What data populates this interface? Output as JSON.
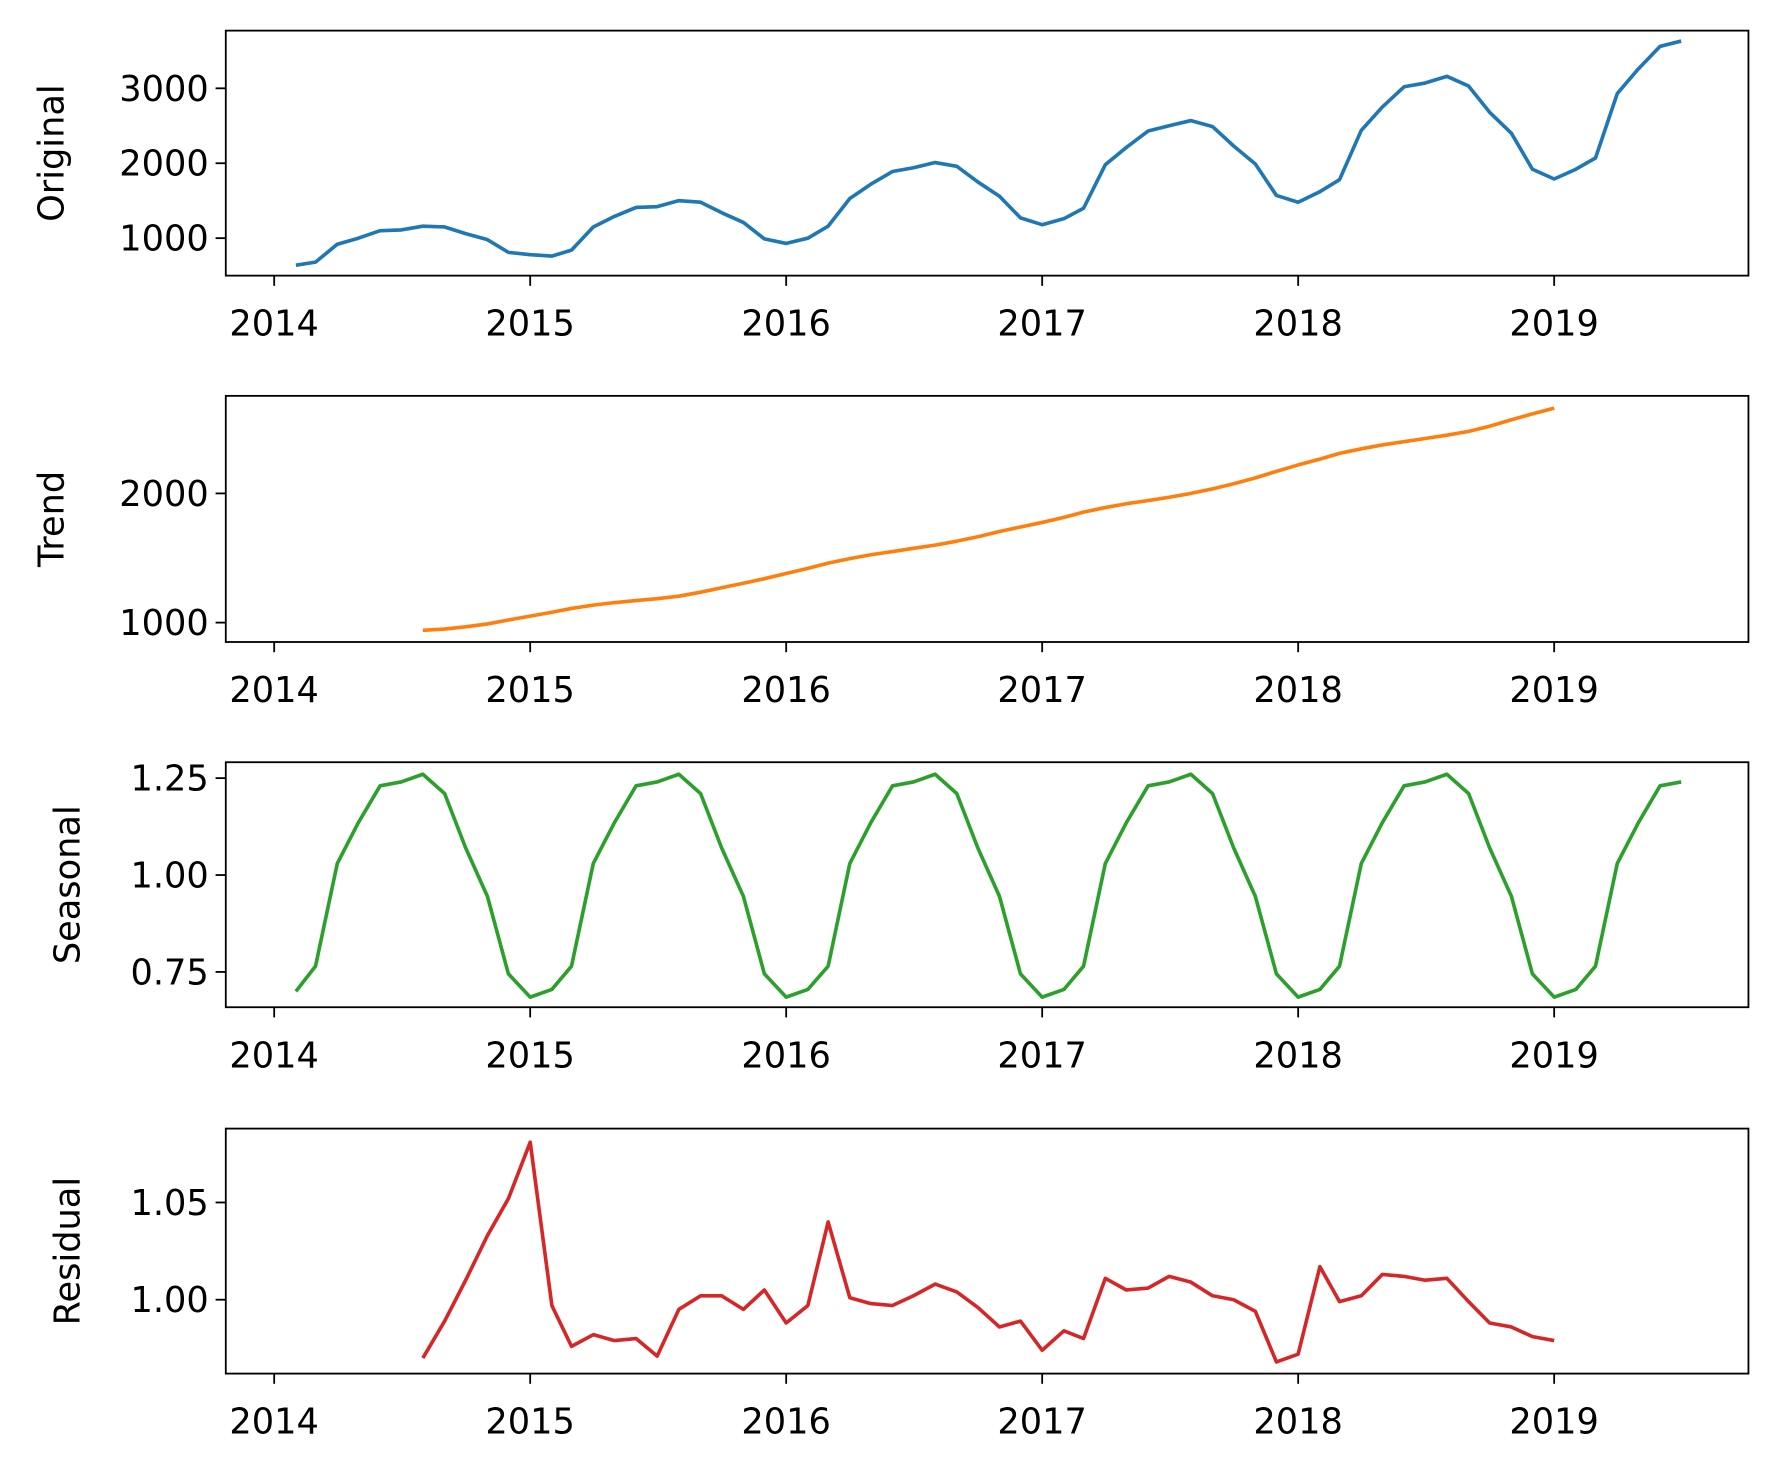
{
  "chart_data": [
    {
      "type": "line",
      "ylabel": "Original",
      "color": "#1f77b4",
      "xlim": [
        "2013-10-24",
        "2019-10-05"
      ],
      "ylim": [
        500,
        3770
      ],
      "xticks": [
        "2014",
        "2015",
        "2016",
        "2017",
        "2018",
        "2019"
      ],
      "yticks": [
        1000,
        2000,
        3000
      ],
      "ytick_labels": [
        "1000",
        "2000",
        "3000"
      ],
      "x": [
        "2014-02",
        "2014-03",
        "2014-04",
        "2014-05",
        "2014-06",
        "2014-07",
        "2014-08",
        "2014-09",
        "2014-10",
        "2014-11",
        "2014-12",
        "2015-01",
        "2015-02",
        "2015-03",
        "2015-04",
        "2015-05",
        "2015-06",
        "2015-07",
        "2015-08",
        "2015-09",
        "2015-10",
        "2015-11",
        "2015-12",
        "2016-01",
        "2016-02",
        "2016-03",
        "2016-04",
        "2016-05",
        "2016-06",
        "2016-07",
        "2016-08",
        "2016-09",
        "2016-10",
        "2016-11",
        "2016-12",
        "2017-01",
        "2017-02",
        "2017-03",
        "2017-04",
        "2017-05",
        "2017-06",
        "2017-07",
        "2017-08",
        "2017-09",
        "2017-10",
        "2017-11",
        "2017-12",
        "2018-01",
        "2018-02",
        "2018-03",
        "2018-04",
        "2018-05",
        "2018-06",
        "2018-07",
        "2018-08",
        "2018-09",
        "2018-10",
        "2018-11",
        "2018-12",
        "2019-01",
        "2019-02",
        "2019-03",
        "2019-04",
        "2019-05",
        "2019-06",
        "2019-07"
      ],
      "values": [
        640,
        680,
        920,
        1000,
        1100,
        1110,
        1160,
        1150,
        1060,
        980,
        810,
        780,
        760,
        840,
        1150,
        1290,
        1410,
        1420,
        1500,
        1480,
        1340,
        1210,
        990,
        930,
        1000,
        1160,
        1530,
        1720,
        1890,
        1940,
        2010,
        1960,
        1750,
        1560,
        1270,
        1180,
        1260,
        1400,
        1980,
        2210,
        2430,
        2500,
        2570,
        2490,
        2230,
        1990,
        1570,
        1480,
        1620,
        1780,
        2440,
        2750,
        3020,
        3070,
        3160,
        3030,
        2680,
        2400,
        1920,
        1790,
        1920,
        2070,
        2930,
        3260,
        3560,
        3630
      ]
    },
    {
      "type": "line",
      "ylabel": "Trend",
      "color": "#ff7f0e",
      "xlim": [
        "2013-10-24",
        "2019-10-05"
      ],
      "ylim": [
        850,
        2755
      ],
      "xticks": [
        "2014",
        "2015",
        "2016",
        "2017",
        "2018",
        "2019"
      ],
      "yticks": [
        1000,
        2000
      ],
      "ytick_labels": [
        "1000",
        "2000"
      ],
      "x": [
        "2014-08",
        "2014-09",
        "2014-10",
        "2014-11",
        "2014-12",
        "2015-01",
        "2015-02",
        "2015-03",
        "2015-04",
        "2015-05",
        "2015-06",
        "2015-07",
        "2015-08",
        "2015-09",
        "2015-10",
        "2015-11",
        "2015-12",
        "2016-01",
        "2016-02",
        "2016-03",
        "2016-04",
        "2016-05",
        "2016-06",
        "2016-07",
        "2016-08",
        "2016-09",
        "2016-10",
        "2016-11",
        "2016-12",
        "2017-01",
        "2017-02",
        "2017-03",
        "2017-04",
        "2017-05",
        "2017-06",
        "2017-07",
        "2017-08",
        "2017-09",
        "2017-10",
        "2017-11",
        "2017-12",
        "2018-01",
        "2018-02",
        "2018-03",
        "2018-04",
        "2018-05",
        "2018-06",
        "2018-07",
        "2018-08",
        "2018-09",
        "2018-10",
        "2018-11",
        "2018-12",
        "2019-01"
      ],
      "values": [
        940,
        950,
        968,
        990,
        1020,
        1050,
        1080,
        1110,
        1135,
        1155,
        1170,
        1185,
        1205,
        1235,
        1270,
        1305,
        1340,
        1380,
        1420,
        1460,
        1495,
        1525,
        1550,
        1575,
        1600,
        1630,
        1665,
        1705,
        1740,
        1775,
        1815,
        1855,
        1890,
        1920,
        1945,
        1970,
        2000,
        2035,
        2075,
        2120,
        2170,
        2220,
        2265,
        2310,
        2345,
        2375,
        2400,
        2425,
        2450,
        2480,
        2520,
        2570,
        2615,
        2660
      ]
    },
    {
      "type": "line",
      "ylabel": "Seasonal",
      "color": "#2ca02c",
      "xlim": [
        "2013-10-24",
        "2019-10-05"
      ],
      "ylim": [
        0.659,
        1.291
      ],
      "xticks": [
        "2014",
        "2015",
        "2016",
        "2017",
        "2018",
        "2019"
      ],
      "yticks": [
        0.75,
        1.0,
        1.25
      ],
      "ytick_labels": [
        "0.75",
        "1.00",
        "1.25"
      ],
      "x": [
        "2014-02",
        "2014-03",
        "2014-04",
        "2014-05",
        "2014-06",
        "2014-07",
        "2014-08",
        "2014-09",
        "2014-10",
        "2014-11",
        "2014-12",
        "2015-01",
        "2015-02",
        "2015-03",
        "2015-04",
        "2015-05",
        "2015-06",
        "2015-07",
        "2015-08",
        "2015-09",
        "2015-10",
        "2015-11",
        "2015-12",
        "2016-01",
        "2016-02",
        "2016-03",
        "2016-04",
        "2016-05",
        "2016-06",
        "2016-07",
        "2016-08",
        "2016-09",
        "2016-10",
        "2016-11",
        "2016-12",
        "2017-01",
        "2017-02",
        "2017-03",
        "2017-04",
        "2017-05",
        "2017-06",
        "2017-07",
        "2017-08",
        "2017-09",
        "2017-10",
        "2017-11",
        "2017-12",
        "2018-01",
        "2018-02",
        "2018-03",
        "2018-04",
        "2018-05",
        "2018-06",
        "2018-07",
        "2018-08",
        "2018-09",
        "2018-10",
        "2018-11",
        "2018-12",
        "2019-01",
        "2019-02",
        "2019-03",
        "2019-04",
        "2019-05",
        "2019-06",
        "2019-07"
      ],
      "values": [
        0.7,
        0.765,
        1.03,
        1.135,
        1.23,
        1.24,
        1.26,
        1.21,
        1.07,
        0.945,
        0.745,
        0.685,
        0.705,
        0.765,
        1.03,
        1.135,
        1.23,
        1.24,
        1.26,
        1.21,
        1.07,
        0.945,
        0.745,
        0.685,
        0.705,
        0.765,
        1.03,
        1.135,
        1.23,
        1.24,
        1.26,
        1.21,
        1.07,
        0.945,
        0.745,
        0.685,
        0.705,
        0.765,
        1.03,
        1.135,
        1.23,
        1.24,
        1.26,
        1.21,
        1.07,
        0.945,
        0.745,
        0.685,
        0.705,
        0.765,
        1.03,
        1.135,
        1.23,
        1.24,
        1.26,
        1.21,
        1.07,
        0.945,
        0.745,
        0.685,
        0.705,
        0.765,
        1.03,
        1.135,
        1.23,
        1.24
      ]
    },
    {
      "type": "line",
      "ylabel": "Residual",
      "color": "#d62728",
      "xlim": [
        "2013-10-24",
        "2019-10-05"
      ],
      "ylim": [
        0.962,
        1.088
      ],
      "xticks": [
        "2014",
        "2015",
        "2016",
        "2017",
        "2018",
        "2019"
      ],
      "yticks": [
        1.0,
        1.05
      ],
      "ytick_labels": [
        "1.00",
        "1.05"
      ],
      "x": [
        "2014-08",
        "2014-09",
        "2014-10",
        "2014-11",
        "2014-12",
        "2015-01",
        "2015-02",
        "2015-03",
        "2015-04",
        "2015-05",
        "2015-06",
        "2015-07",
        "2015-08",
        "2015-09",
        "2015-10",
        "2015-11",
        "2015-12",
        "2016-01",
        "2016-02",
        "2016-03",
        "2016-04",
        "2016-05",
        "2016-06",
        "2016-07",
        "2016-08",
        "2016-09",
        "2016-10",
        "2016-11",
        "2016-12",
        "2017-01",
        "2017-02",
        "2017-03",
        "2017-04",
        "2017-05",
        "2017-06",
        "2017-07",
        "2017-08",
        "2017-09",
        "2017-10",
        "2017-11",
        "2017-12",
        "2018-01",
        "2018-02",
        "2018-03",
        "2018-04",
        "2018-05",
        "2018-06",
        "2018-07",
        "2018-08",
        "2018-09",
        "2018-10",
        "2018-11",
        "2018-12",
        "2019-01"
      ],
      "values": [
        0.97,
        0.989,
        1.01,
        1.033,
        1.052,
        1.081,
        0.997,
        0.976,
        0.982,
        0.979,
        0.98,
        0.971,
        0.995,
        1.002,
        1.002,
        0.995,
        1.005,
        0.988,
        0.997,
        1.04,
        1.001,
        0.998,
        0.997,
        1.002,
        1.008,
        1.004,
        0.996,
        0.986,
        0.989,
        0.974,
        0.984,
        0.98,
        1.011,
        1.005,
        1.006,
        1.012,
        1.009,
        1.002,
        1.0,
        0.994,
        0.968,
        0.972,
        1.017,
        0.999,
        1.002,
        1.013,
        1.012,
        1.01,
        1.011,
        0.999,
        0.988,
        0.986,
        0.981,
        0.979
      ]
    }
  ]
}
